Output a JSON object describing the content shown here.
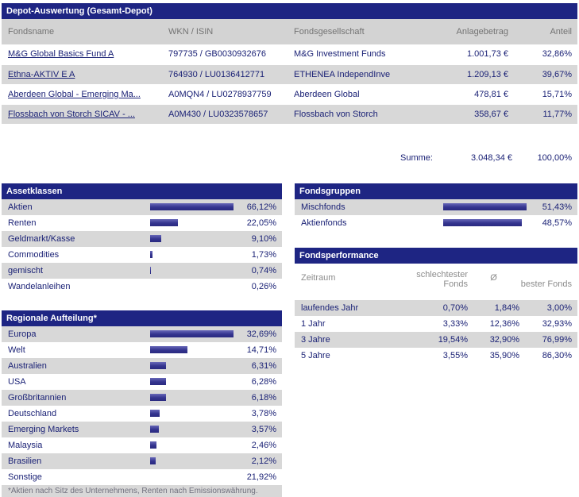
{
  "title": "Depot-Auswertung (Gesamt-Depot)",
  "colors": {
    "header_bg": "#1e2583",
    "text_navy": "#1b2276",
    "stripe_gray": "#d8d8d8",
    "table_header_gray": "#d3d3d3",
    "bar_blue": "#34348f"
  },
  "fund_table": {
    "headers": [
      "Fondsname",
      "WKN / ISIN",
      "Fondsgesellschaft",
      "Anlagebetrag",
      "Anteil"
    ],
    "rows": [
      {
        "name": "M&G Global Basics Fund A",
        "wkn_isin": "797735 / GB0030932676",
        "company": "M&G Investment Funds",
        "amount": "1.001,73 €",
        "share": "32,86%"
      },
      {
        "name": "Ethna-AKTIV E A",
        "wkn_isin": "764930 / LU0136412771",
        "company": "ETHENEA IndependInve",
        "amount": "1.209,13 €",
        "share": "39,67%"
      },
      {
        "name": "Aberdeen Global - Emerging Ma...",
        "wkn_isin": "A0MQN4 / LU0278937759",
        "company": "Aberdeen Global",
        "amount": "478,81 €",
        "share": "15,71%"
      },
      {
        "name": "Flossbach von Storch SICAV - ...",
        "wkn_isin": "A0M430 / LU0323578657",
        "company": "Flossbach von Storch",
        "amount": "358,67 €",
        "share": "11,77%"
      }
    ],
    "summe_label": "Summe:",
    "summe_amount": "3.048,34 €",
    "summe_share": "100,00%"
  },
  "assetklassen": {
    "title": "Assetklassen",
    "items": [
      {
        "label": "Aktien",
        "value": 66.12,
        "display": "66,12%"
      },
      {
        "label": "Renten",
        "value": 22.05,
        "display": "22,05%"
      },
      {
        "label": "Geldmarkt/Kasse",
        "value": 9.1,
        "display": "9,10%"
      },
      {
        "label": "Commodities",
        "value": 1.73,
        "display": "1,73%"
      },
      {
        "label": "gemischt",
        "value": 0.74,
        "display": "0,74%"
      },
      {
        "label": "Wandelanleihen",
        "value": 0.26,
        "display": "0,26%"
      }
    ]
  },
  "fondsgruppen": {
    "title": "Fondsgruppen",
    "items": [
      {
        "label": "Mischfonds",
        "value": 51.43,
        "display": "51,43%"
      },
      {
        "label": "Aktienfonds",
        "value": 48.57,
        "display": "48,57%"
      }
    ]
  },
  "regionale": {
    "title": "Regionale Aufteilung*",
    "items": [
      {
        "label": "Europa",
        "value": 32.69,
        "display": "32,69%"
      },
      {
        "label": "Welt",
        "value": 14.71,
        "display": "14,71%"
      },
      {
        "label": "Australien",
        "value": 6.31,
        "display": "6,31%"
      },
      {
        "label": "USA",
        "value": 6.28,
        "display": "6,28%"
      },
      {
        "label": "Großbritannien",
        "value": 6.18,
        "display": "6,18%"
      },
      {
        "label": "Deutschland",
        "value": 3.78,
        "display": "3,78%"
      },
      {
        "label": "Emerging Markets",
        "value": 3.57,
        "display": "3,57%"
      },
      {
        "label": "Malaysia",
        "value": 2.46,
        "display": "2,46%"
      },
      {
        "label": "Brasilien",
        "value": 2.12,
        "display": "2,12%"
      },
      {
        "label": "Sonstige",
        "value": 21.92,
        "display": "21,92%",
        "bar": false
      }
    ],
    "footnote": "*Aktien nach Sitz des Unternehmens, Renten nach Emissionswährung."
  },
  "fondsperformance": {
    "title": "Fondsperformance",
    "col_headers": {
      "zeitraum": "Zeitraum",
      "worst": "schlechtester Fonds",
      "avg": "Ø",
      "best": "bester Fonds"
    },
    "rows": [
      {
        "zeitraum": "laufendes Jahr",
        "worst": "0,70%",
        "avg": "1,84%",
        "best": "3,00%"
      },
      {
        "zeitraum": "1 Jahr",
        "worst": "3,33%",
        "avg": "12,36%",
        "best": "32,93%"
      },
      {
        "zeitraum": "3 Jahre",
        "worst": "19,54%",
        "avg": "32,90%",
        "best": "76,99%"
      },
      {
        "zeitraum": "5 Jahre",
        "worst": "3,55%",
        "avg": "35,90%",
        "best": "86,30%"
      }
    ]
  },
  "chart_data": [
    {
      "type": "bar",
      "title": "Assetklassen",
      "categories": [
        "Aktien",
        "Renten",
        "Geldmarkt/Kasse",
        "Commodities",
        "gemischt",
        "Wandelanleihen"
      ],
      "values": [
        66.12,
        22.05,
        9.1,
        1.73,
        0.74,
        0.26
      ],
      "unit": "%"
    },
    {
      "type": "bar",
      "title": "Fondsgruppen",
      "categories": [
        "Mischfonds",
        "Aktienfonds"
      ],
      "values": [
        51.43,
        48.57
      ],
      "unit": "%"
    },
    {
      "type": "bar",
      "title": "Regionale Aufteilung*",
      "categories": [
        "Europa",
        "Welt",
        "Australien",
        "USA",
        "Großbritannien",
        "Deutschland",
        "Emerging Markets",
        "Malaysia",
        "Brasilien",
        "Sonstige"
      ],
      "values": [
        32.69,
        14.71,
        6.31,
        6.28,
        6.18,
        3.78,
        3.57,
        2.46,
        2.12,
        21.92
      ],
      "unit": "%"
    }
  ]
}
